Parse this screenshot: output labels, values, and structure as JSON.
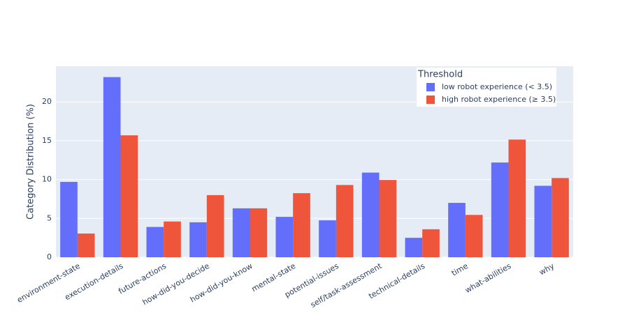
{
  "chart_data": {
    "type": "bar",
    "y_label": "Category Distribution (%)",
    "legend_title": "Threshold",
    "legend_position": "top-right",
    "grid": true,
    "categories": [
      "environment-state",
      "execution-details",
      "future-actions",
      "how-did-you-decide",
      "how-did-you-know",
      "mental-state",
      "potential-issues",
      "self/task-assessment",
      "technical-details",
      "time",
      "what-abilities",
      "why"
    ],
    "series": [
      {
        "name": "low robot experience (< 3.5)",
        "color": "#636efa",
        "values": [
          9.7,
          23.2,
          3.9,
          4.5,
          6.3,
          5.2,
          4.75,
          10.9,
          2.5,
          7.0,
          12.2,
          9.2
        ]
      },
      {
        "name": "high robot experience (≥ 3.5)",
        "color": "#ef553b",
        "values": [
          3.05,
          15.7,
          4.6,
          8.0,
          6.3,
          8.25,
          9.3,
          9.95,
          3.6,
          5.45,
          15.15,
          10.2
        ]
      }
    ],
    "ylim": [
      0,
      24.6
    ],
    "yticks": [
      0,
      5,
      10,
      15,
      20
    ]
  }
}
